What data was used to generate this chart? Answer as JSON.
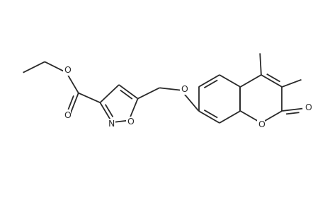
{
  "background": "#ffffff",
  "line_color": "#2a2a2a",
  "line_width": 1.3,
  "font_size": 9.0,
  "figsize": [
    4.6,
    3.0
  ],
  "dpi": 100,
  "xlim": [
    0,
    460
  ],
  "ylim": [
    0,
    300
  ]
}
